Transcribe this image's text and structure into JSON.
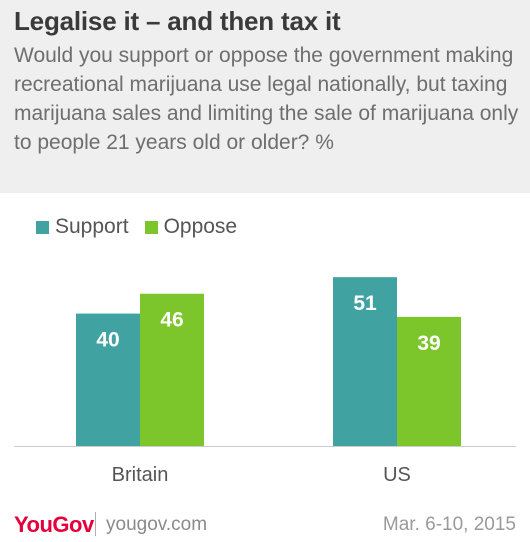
{
  "header": {
    "title": "Legalise it – and then tax it",
    "subtitle": "Would you support or oppose the government making recreational marijuana use legal nationally, but taxing marijuana sales and limiting the sale of marijuana only to people 21 years old or older? %"
  },
  "colors": {
    "support": "#41a2a2",
    "oppose": "#7cc52a",
    "header_bg": "#efefef",
    "brand": "#e4003b"
  },
  "chart_data": {
    "type": "bar",
    "categories": [
      "Britain",
      "US"
    ],
    "series": [
      {
        "name": "Support",
        "values": [
          40,
          51
        ]
      },
      {
        "name": "Oppose",
        "values": [
          46,
          39
        ]
      }
    ],
    "ylim": [
      0,
      58
    ],
    "legend_position": "top-left",
    "grid": false,
    "data_labels": true
  },
  "footer": {
    "logo_you": "You",
    "logo_gov": "Gov",
    "site": "yougov.com",
    "date": "Mar. 6-10, 2015"
  }
}
